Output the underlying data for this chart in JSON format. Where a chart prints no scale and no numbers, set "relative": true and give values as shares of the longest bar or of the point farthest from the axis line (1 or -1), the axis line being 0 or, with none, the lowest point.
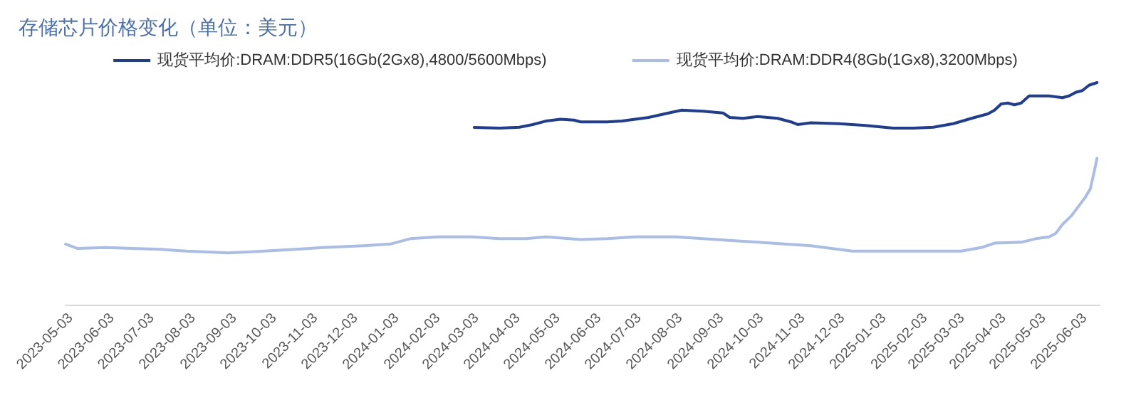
{
  "chart_data": {
    "type": "line",
    "title": "存储芯片价格变化（单位：美元）",
    "relative": true,
    "grid": false,
    "legend": "top",
    "marker": "none",
    "line_style": "solid",
    "xlim": [
      "2023-04-29",
      "2025-06-14"
    ],
    "xticks": [
      "2023-05-03",
      "2023-06-03",
      "2023-07-03",
      "2023-08-03",
      "2023-09-03",
      "2023-10-03",
      "2023-11-03",
      "2023-12-03",
      "2024-01-03",
      "2024-02-03",
      "2024-03-03",
      "2024-04-03",
      "2024-05-03",
      "2024-06-03",
      "2024-07-03",
      "2024-08-03",
      "2024-09-03",
      "2024-10-03",
      "2024-11-03",
      "2024-12-03",
      "2025-01-03",
      "2025-02-03",
      "2025-03-03",
      "2025-04-03",
      "2025-05-03",
      "2025-06-03"
    ],
    "series": [
      {
        "name": "现货平均价:DRAM:DDR5(16Gb(2Gx8),4800/5600Mbps)",
        "color": "#1f3d93",
        "x": [
          "2024-03-01",
          "2024-03-20",
          "2024-04-04",
          "2024-04-14",
          "2024-04-24",
          "2024-05-05",
          "2024-05-15",
          "2024-05-20",
          "2024-06-09",
          "2024-06-20",
          "2024-07-10",
          "2024-07-25",
          "2024-08-04",
          "2024-08-20",
          "2024-09-04",
          "2024-09-09",
          "2024-09-19",
          "2024-09-30",
          "2024-10-15",
          "2024-10-25",
          "2024-10-30",
          "2024-11-09",
          "2024-11-30",
          "2024-12-20",
          "2025-01-10",
          "2025-01-25",
          "2025-02-09",
          "2025-02-24",
          "2025-03-12",
          "2025-03-22",
          "2025-03-27",
          "2025-04-01",
          "2025-04-06",
          "2025-04-11",
          "2025-04-16",
          "2025-04-22",
          "2025-05-07",
          "2025-05-17",
          "2025-05-22",
          "2025-05-27",
          "2025-06-01",
          "2025-06-06",
          "2025-06-12"
        ],
        "values": [
          0.798,
          0.795,
          0.799,
          0.811,
          0.827,
          0.835,
          0.831,
          0.823,
          0.823,
          0.827,
          0.843,
          0.863,
          0.876,
          0.871,
          0.863,
          0.843,
          0.839,
          0.847,
          0.839,
          0.823,
          0.811,
          0.819,
          0.815,
          0.807,
          0.795,
          0.795,
          0.799,
          0.815,
          0.843,
          0.859,
          0.876,
          0.904,
          0.908,
          0.9,
          0.908,
          0.94,
          0.94,
          0.932,
          0.94,
          0.956,
          0.964,
          0.988,
          1.0
        ]
      },
      {
        "name": "现货平均价:DRAM:DDR4(8Gb(1Gx8),3200Mbps)",
        "color": "#a9bde8",
        "x": [
          "2023-04-29",
          "2023-05-08",
          "2023-05-29",
          "2023-07-09",
          "2023-07-29",
          "2023-08-29",
          "2023-09-13",
          "2023-10-19",
          "2023-11-08",
          "2023-12-09",
          "2023-12-29",
          "2024-01-13",
          "2024-02-03",
          "2024-02-28",
          "2024-03-20",
          "2024-04-09",
          "2024-04-24",
          "2024-05-20",
          "2024-06-09",
          "2024-06-30",
          "2024-07-30",
          "2024-08-20",
          "2024-09-30",
          "2024-11-09",
          "2024-12-10",
          "2025-01-10",
          "2025-02-09",
          "2025-03-02",
          "2025-03-17",
          "2025-03-27",
          "2025-04-16",
          "2025-04-27",
          "2025-05-07",
          "2025-05-12",
          "2025-05-17",
          "2025-05-24",
          "2025-05-29",
          "2025-06-03",
          "2025-06-07",
          "2025-06-10",
          "2025-06-12"
        ],
        "values": [
          0.273,
          0.253,
          0.257,
          0.249,
          0.241,
          0.233,
          0.237,
          0.249,
          0.257,
          0.265,
          0.273,
          0.297,
          0.305,
          0.305,
          0.297,
          0.297,
          0.305,
          0.293,
          0.297,
          0.305,
          0.305,
          0.297,
          0.281,
          0.265,
          0.241,
          0.241,
          0.241,
          0.241,
          0.257,
          0.277,
          0.281,
          0.297,
          0.305,
          0.321,
          0.361,
          0.402,
          0.442,
          0.482,
          0.522,
          0.602,
          0.659
        ]
      }
    ]
  }
}
